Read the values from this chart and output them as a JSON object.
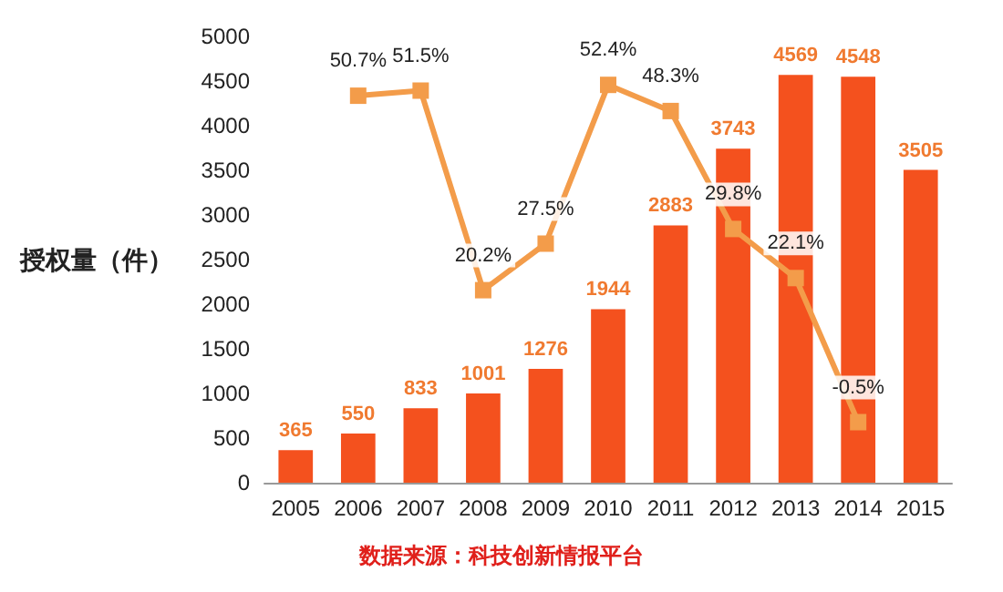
{
  "chart_data": {
    "type": "bar",
    "ylabel": "授权量（件）",
    "categories": [
      "2005",
      "2006",
      "2007",
      "2008",
      "2009",
      "2010",
      "2011",
      "2012",
      "2013",
      "2014",
      "2015"
    ],
    "series": [
      {
        "color": "#f4511e",
        "values": [
          365,
          550,
          833,
          1001,
          1276,
          1944,
          2883,
          3743,
          4569,
          4548,
          3505
        ],
        "value_labels": [
          "365",
          "550",
          "833",
          "1001",
          "1276",
          "1944",
          "2883",
          "3743",
          "4569",
          "4548",
          "3505"
        ]
      },
      {
        "type": "line",
        "axis": "y2",
        "color": "#f39c4a",
        "marker": "square",
        "values": [
          null,
          50.7,
          51.5,
          20.2,
          27.5,
          52.4,
          48.3,
          29.8,
          22.1,
          -0.5,
          null
        ],
        "value_labels": [
          null,
          "50.7%",
          "51.5%",
          "20.2%",
          "27.5%",
          "52.4%",
          "48.3%",
          "29.8%",
          "22.1%",
          "-0.5%",
          null
        ]
      }
    ],
    "ylim": [
      0,
      5000
    ],
    "yticks": [
      0,
      500,
      1000,
      1500,
      2000,
      2500,
      3000,
      3500,
      4000,
      4500,
      5000
    ],
    "grid": false,
    "annotations": [
      "数据来源：科技创新情报平台"
    ]
  }
}
